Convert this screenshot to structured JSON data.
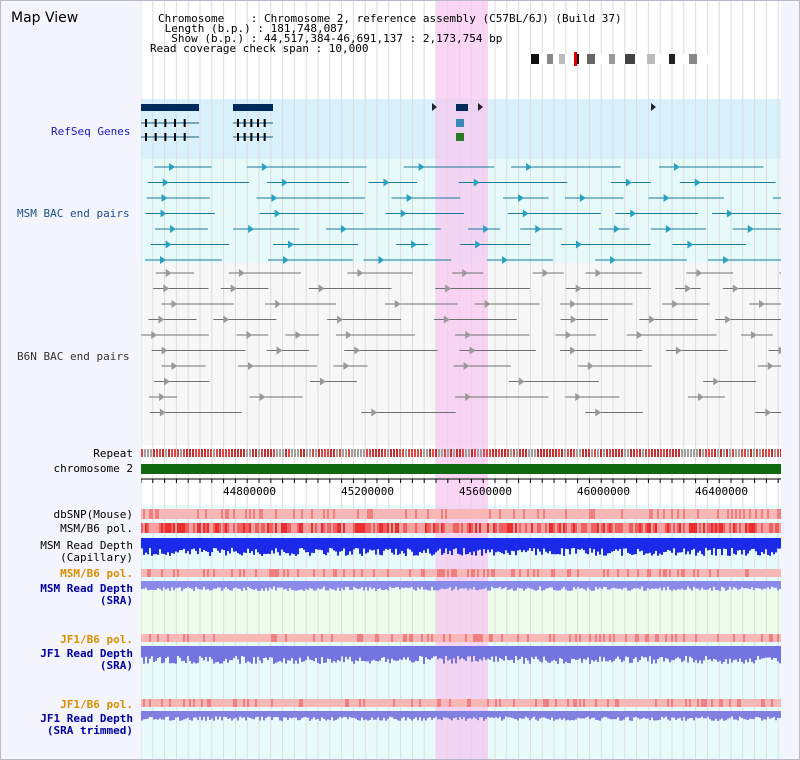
{
  "view_title": "Map View",
  "info": {
    "chromosome_line": "Chromosome    : Chromosome 2, reference assembly (C57BL/6J) (Build 37)",
    "length_line": " Length (b.p.) : 181,748,087",
    "show_line": "  Show (b.p.) : 44,517,384-46,691,137 : 2,173,754 bp",
    "coverage_line": "Read coverage check span : 10,000"
  },
  "labels": {
    "refseq": "RefSeq Genes",
    "msm_bac": "MSM BAC end pairs",
    "b6n_bac": "B6N BAC end pairs",
    "repeat": "Repeat",
    "chromosome": "chromosome 2",
    "dbsnp": "dbSNP(Mouse)",
    "msm_pol": "MSM/B6 pol.",
    "msm_depth_cap_1": "MSM Read Depth",
    "msm_depth_cap_2": "(Capillary)",
    "msm_pol_2": "MSM/B6 pol.",
    "msm_depth_sra_1": "MSM Read Depth",
    "msm_depth_sra_2": "(SRA)",
    "jf1_pol": "JF1/B6 pol.",
    "jf1_depth_1": "JF1 Read Depth",
    "jf1_depth_2": "(SRA)",
    "jf1_pol_2": "JF1/B6 pol.",
    "jf1_trim_1": "JF1 Read Depth",
    "jf1_trim_2": "(SRA trimmed)"
  },
  "axis_ticks": [
    "44800000",
    "45200000",
    "45600000",
    "46000000",
    "46400000"
  ],
  "colors": {
    "refseq_bg": "#d9f1fb",
    "msm_bg": "#e6fafa",
    "highlight": "#f6c8f0",
    "chromosome_bar": "#0f6a0f",
    "msm_label": "#1a4e8a",
    "orange_label": "#d89000",
    "blue_label": "#0000a0"
  }
}
